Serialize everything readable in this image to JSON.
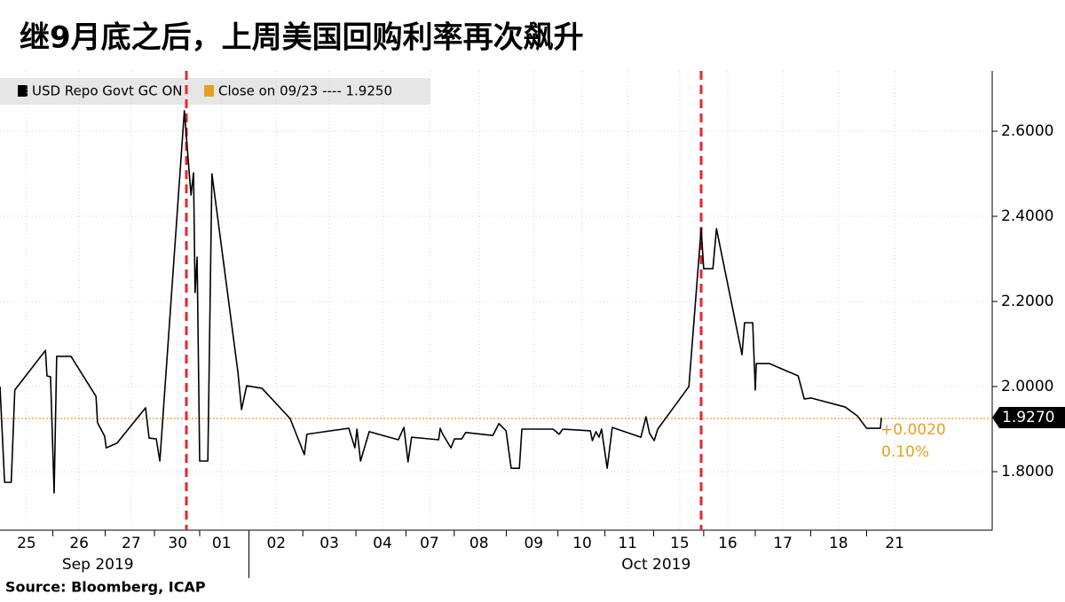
{
  "chart_data": {
    "type": "line",
    "title": "继9月底之后，上周美国回购利率再次飙升",
    "source": "Source: Bloomberg, ICAP",
    "xlim": [
      -0.52,
      18.91
    ],
    "ylim": [
      1.6625,
      2.7417
    ],
    "xticks": [
      {
        "value": 0,
        "label": "25"
      },
      {
        "value": 1.03,
        "label": "26"
      },
      {
        "value": 2.05,
        "label": "27"
      },
      {
        "value": 2.96,
        "label": "30"
      },
      {
        "value": 3.82,
        "label": "01"
      },
      {
        "value": 4.89,
        "label": "02"
      },
      {
        "value": 5.93,
        "label": "03"
      },
      {
        "value": 6.97,
        "label": "04"
      },
      {
        "value": 7.89,
        "label": "07"
      },
      {
        "value": 8.86,
        "label": "08"
      },
      {
        "value": 9.93,
        "label": "09"
      },
      {
        "value": 10.88,
        "label": "10"
      },
      {
        "value": 11.77,
        "label": "11"
      },
      {
        "value": 12.79,
        "label": "15"
      },
      {
        "value": 13.73,
        "label": "16"
      },
      {
        "value": 14.81,
        "label": "17"
      },
      {
        "value": 15.9,
        "label": "18"
      },
      {
        "value": 17,
        "label": "21"
      }
    ],
    "months": [
      "Sep 2019",
      "Oct 2019"
    ],
    "yticks": [
      {
        "value": 1.8,
        "label": "1.8000"
      },
      {
        "value": 2.0,
        "label": "2.0000"
      },
      {
        "value": 2.2,
        "label": "2.2000"
      },
      {
        "value": 2.4,
        "label": "2.4000"
      },
      {
        "value": 2.6,
        "label": "2.6000"
      }
    ],
    "grid": true,
    "series": [
      {
        "name": "USD Repo Govt GC ON",
        "color": "#000000",
        "x": [
          -0.52,
          -0.43,
          -0.3,
          -0.23,
          0.37,
          0.4,
          0.47,
          0.54,
          0.59,
          0.87,
          1.36,
          1.39,
          1.53,
          1.56,
          1.77,
          2.33,
          2.4,
          2.54,
          2.61,
          3.09,
          3.22,
          3.27,
          3.3,
          3.34,
          3.39,
          3.55,
          3.63,
          4.14,
          4.21,
          4.31,
          4.61,
          5.16,
          5.44,
          5.49,
          6.31,
          6.43,
          6.47,
          6.54,
          6.71,
          7.28,
          7.39,
          7.47,
          7.54,
          8.07,
          8.1,
          8.15,
          8.31,
          8.38,
          8.52,
          8.6,
          9.13,
          9.25,
          9.39,
          9.49,
          9.65,
          9.7,
          10.31,
          10.43,
          10.5,
          11.04,
          11.08,
          11.15,
          11.21,
          11.26,
          11.37,
          11.47,
          12.03,
          12.13,
          12.2,
          12.29,
          12.36,
          12.97,
          13.21,
          13.26,
          13.44,
          13.51,
          14.01,
          14.06,
          14.22,
          14.27,
          14.29,
          14.55,
          15.11,
          15.23,
          15.37,
          16.03,
          16.27,
          16.45,
          16.72,
          16.74
        ],
        "values": [
          2.0,
          1.775,
          1.775,
          1.992,
          2.085,
          2.025,
          2.023,
          1.75,
          2.071,
          2.071,
          1.977,
          1.915,
          1.883,
          1.856,
          1.867,
          1.95,
          1.879,
          1.877,
          1.825,
          2.648,
          2.45,
          2.502,
          2.221,
          2.304,
          1.825,
          1.825,
          2.5,
          2.033,
          1.946,
          2.002,
          1.996,
          1.925,
          1.84,
          1.888,
          1.902,
          1.856,
          1.9,
          1.825,
          1.894,
          1.875,
          1.904,
          1.823,
          1.881,
          1.875,
          1.902,
          1.888,
          1.856,
          1.877,
          1.877,
          1.892,
          1.885,
          1.913,
          1.896,
          1.808,
          1.808,
          1.9,
          1.9,
          1.888,
          1.9,
          1.896,
          1.873,
          1.894,
          1.881,
          1.9,
          1.808,
          1.904,
          1.881,
          1.929,
          1.89,
          1.873,
          1.9,
          2.0,
          2.371,
          2.277,
          2.277,
          2.371,
          2.075,
          2.15,
          2.15,
          1.992,
          2.054,
          2.054,
          2.025,
          1.971,
          1.973,
          1.952,
          1.931,
          1.902,
          1.902,
          1.927
        ]
      }
    ],
    "reference_line": {
      "name": "Close on 09/23 ---- 1.9250",
      "value": 1.925,
      "color": "#e8a020"
    },
    "last_price": {
      "value": 1.927,
      "label": "1.9270"
    },
    "change": {
      "value": 0.002,
      "label": "+0.0020"
    },
    "change_pct": {
      "value": 0.1,
      "label": "0.10%"
    },
    "vlines": {
      "color": "#e8262f",
      "x": [
        3.13,
        13.21
      ]
    }
  }
}
